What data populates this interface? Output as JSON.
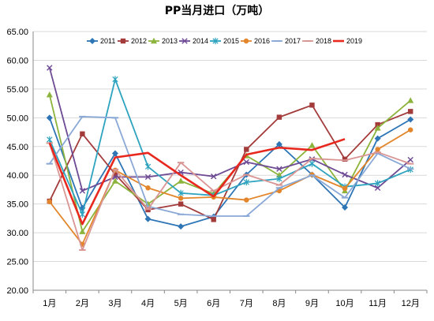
{
  "chart_data": {
    "type": "line",
    "title": "PP当月进口（万吨）",
    "xlabel": "",
    "ylabel": "",
    "categories": [
      "1月",
      "2月",
      "3月",
      "4月",
      "5月",
      "6月",
      "7月",
      "8月",
      "9月",
      "10月",
      "11月",
      "12月"
    ],
    "ylim": [
      20,
      65
    ],
    "yticks": [
      "20.00",
      "25.00",
      "30.00",
      "35.00",
      "40.00",
      "45.00",
      "50.00",
      "55.00",
      "60.00",
      "65.00"
    ],
    "grid": true,
    "legend_position": "top",
    "series": [
      {
        "name": "2011",
        "color": "#2e75b6",
        "marker": "diamond",
        "values": [
          50.0,
          34.3,
          43.8,
          32.4,
          31.1,
          32.8,
          40.1,
          45.4,
          40.1,
          34.4,
          46.4,
          49.7
        ]
      },
      {
        "name": "2012",
        "color": "#a33b3b",
        "marker": "square",
        "values": [
          35.5,
          47.2,
          40.2,
          34.0,
          35.0,
          32.3,
          44.5,
          50.1,
          52.2,
          42.8,
          48.8,
          51.1
        ]
      },
      {
        "name": "2013",
        "color": "#8db43c",
        "marker": "triangle",
        "values": [
          54.0,
          30.2,
          39.0,
          35.0,
          39.0,
          36.8,
          43.4,
          40.0,
          45.2,
          37.3,
          48.2,
          53.0
        ]
      },
      {
        "name": "2014",
        "color": "#6e4a94",
        "marker": "x",
        "values": [
          58.7,
          37.3,
          39.7,
          39.7,
          40.5,
          39.8,
          42.3,
          41.1,
          42.8,
          40.1,
          37.8,
          42.7
        ]
      },
      {
        "name": "2015",
        "color": "#2ea3bf",
        "marker": "star",
        "values": [
          46.2,
          33.2,
          56.7,
          41.5,
          36.9,
          36.5,
          38.8,
          39.4,
          42.0,
          38.0,
          38.6,
          41.0
        ]
      },
      {
        "name": "2016",
        "color": "#e3862b",
        "marker": "circle",
        "values": [
          35.4,
          28.0,
          40.9,
          37.8,
          36.0,
          36.2,
          35.7,
          37.3,
          40.1,
          37.7,
          44.5,
          47.9
        ]
      },
      {
        "name": "2017",
        "color": "#8aa8d6",
        "marker": "dash",
        "values": [
          42.0,
          50.2,
          50.0,
          34.6,
          33.2,
          32.9,
          32.9,
          37.8,
          40.0,
          36.1,
          43.8,
          41.1
        ]
      },
      {
        "name": "2018",
        "color": "#d99594",
        "marker": "dash",
        "values": [
          45.6,
          27.0,
          41.0,
          34.1,
          42.2,
          37.3,
          40.1,
          38.3,
          42.9,
          42.6,
          44.0,
          42.0
        ]
      },
      {
        "name": "2019",
        "color": "#e8281e",
        "marker": "none",
        "bold": true,
        "values": [
          45.6,
          31.5,
          43.1,
          43.9,
          40.0,
          36.3,
          43.6,
          44.8,
          44.4,
          46.3,
          null,
          null
        ]
      }
    ]
  }
}
